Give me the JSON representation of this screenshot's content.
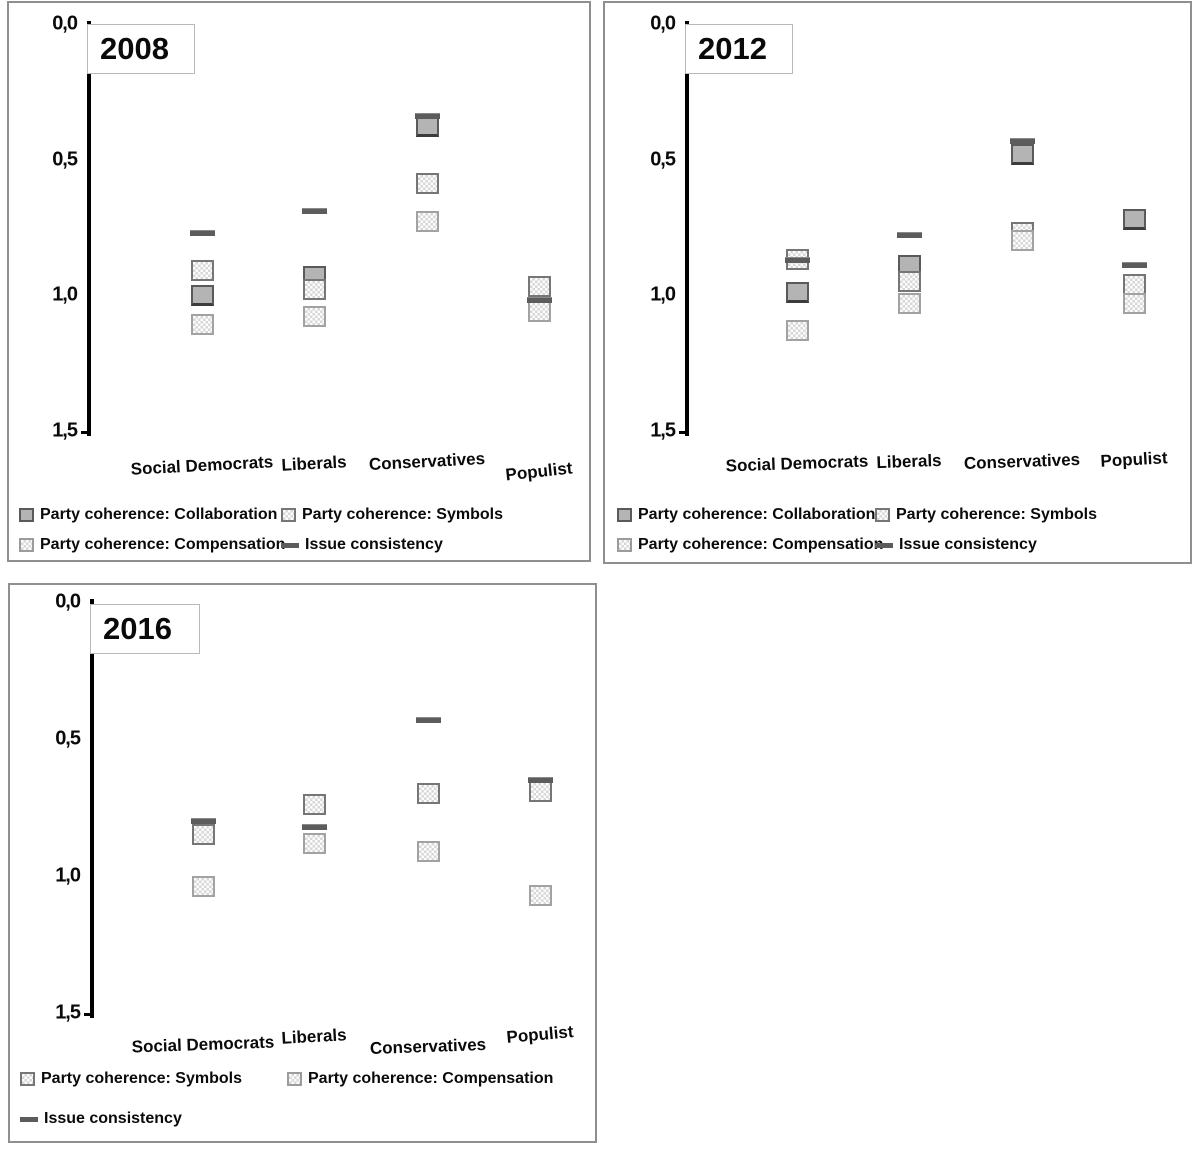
{
  "page": {
    "background": "#ffffff"
  },
  "colors": {
    "axis": "#000000",
    "chart_border": "#8f8f8f",
    "collaboration_fill": "#b4b4b4",
    "collaboration_border": "#5a5a5a",
    "symbols_border": "#767676",
    "compensation_border": "#a2a2a2",
    "pattern_dot": "#d8d8d8",
    "issue_dash": "#5c5c5c",
    "text": "#0a0a0a"
  },
  "chart_data": [
    {
      "type": "scatter",
      "title": "2008",
      "categories": [
        "Social Democrats",
        "Liberals",
        "Conservatives",
        "Populist"
      ],
      "y_axis": {
        "ticks": [
          "0,0",
          "0,5",
          "1,0",
          "1,5"
        ],
        "min": 0.0,
        "max": 1.5,
        "inverted": true,
        "grid": false
      },
      "series": [
        {
          "key": "collaboration",
          "name": "Party coherence: Collaboration",
          "marker": "solid-gray-square",
          "values": [
            1.0,
            0.93,
            0.38,
            null
          ]
        },
        {
          "key": "symbols",
          "name": "Party coherence: Symbols",
          "marker": "dotted-light-square",
          "values": [
            0.91,
            0.98,
            0.59,
            0.97
          ]
        },
        {
          "key": "compensation",
          "name": "Party coherence: Compensation",
          "marker": "dotted-lighter-square",
          "values": [
            1.11,
            1.08,
            0.73,
            1.06
          ]
        },
        {
          "key": "issue",
          "name": "Issue consistency",
          "marker": "dark-dash",
          "values": [
            0.77,
            0.69,
            0.34,
            1.02
          ]
        }
      ],
      "legend_rows": [
        [
          "collaboration",
          "symbols"
        ],
        [
          "compensation",
          "issue"
        ]
      ],
      "legend_position": "bottom"
    },
    {
      "type": "scatter",
      "title": "2012",
      "categories": [
        "Social Democrats",
        "Liberals",
        "Conservatives",
        "Populist"
      ],
      "y_axis": {
        "ticks": [
          "0,0",
          "0,5",
          "1,0",
          "1,5"
        ],
        "min": 0.0,
        "max": 1.5,
        "inverted": true,
        "grid": false
      },
      "series": [
        {
          "key": "collaboration",
          "name": "Party coherence: Collaboration",
          "marker": "solid-gray-square",
          "values": [
            0.99,
            0.89,
            0.48,
            0.72
          ]
        },
        {
          "key": "symbols",
          "name": "Party coherence: Symbols",
          "marker": "dotted-light-square",
          "values": [
            0.87,
            0.95,
            0.77,
            0.96
          ]
        },
        {
          "key": "compensation",
          "name": "Party coherence: Compensation",
          "marker": "dotted-lighter-square",
          "values": [
            1.13,
            1.03,
            0.8,
            1.03
          ]
        },
        {
          "key": "issue",
          "name": "Issue consistency",
          "marker": "dark-dash",
          "values": [
            0.87,
            0.78,
            0.43,
            0.89
          ]
        }
      ],
      "legend_rows": [
        [
          "collaboration",
          "symbols"
        ],
        [
          "compensation",
          "issue"
        ]
      ],
      "legend_position": "bottom"
    },
    {
      "type": "scatter",
      "title": "2016",
      "categories": [
        "Social Democrats",
        "Liberals",
        "Conservatives",
        "Populist"
      ],
      "y_axis": {
        "ticks": [
          "0,0",
          "0,5",
          "1,0",
          "1,5"
        ],
        "min": 0.0,
        "max": 1.5,
        "inverted": true,
        "grid": false
      },
      "series": [
        {
          "key": "symbols",
          "name": "Party coherence: Symbols",
          "marker": "dotted-light-square",
          "values": [
            0.85,
            0.74,
            0.7,
            0.69
          ]
        },
        {
          "key": "compensation",
          "name": "Party coherence: Compensation",
          "marker": "dotted-lighter-square",
          "values": [
            1.04,
            0.88,
            0.91,
            1.07
          ]
        },
        {
          "key": "issue",
          "name": "Issue consistency",
          "marker": "dark-dash",
          "values": [
            0.8,
            0.82,
            0.43,
            0.65
          ]
        }
      ],
      "legend_rows": [
        [
          "symbols",
          "compensation"
        ],
        [
          "issue"
        ]
      ],
      "legend_position": "bottom"
    }
  ]
}
